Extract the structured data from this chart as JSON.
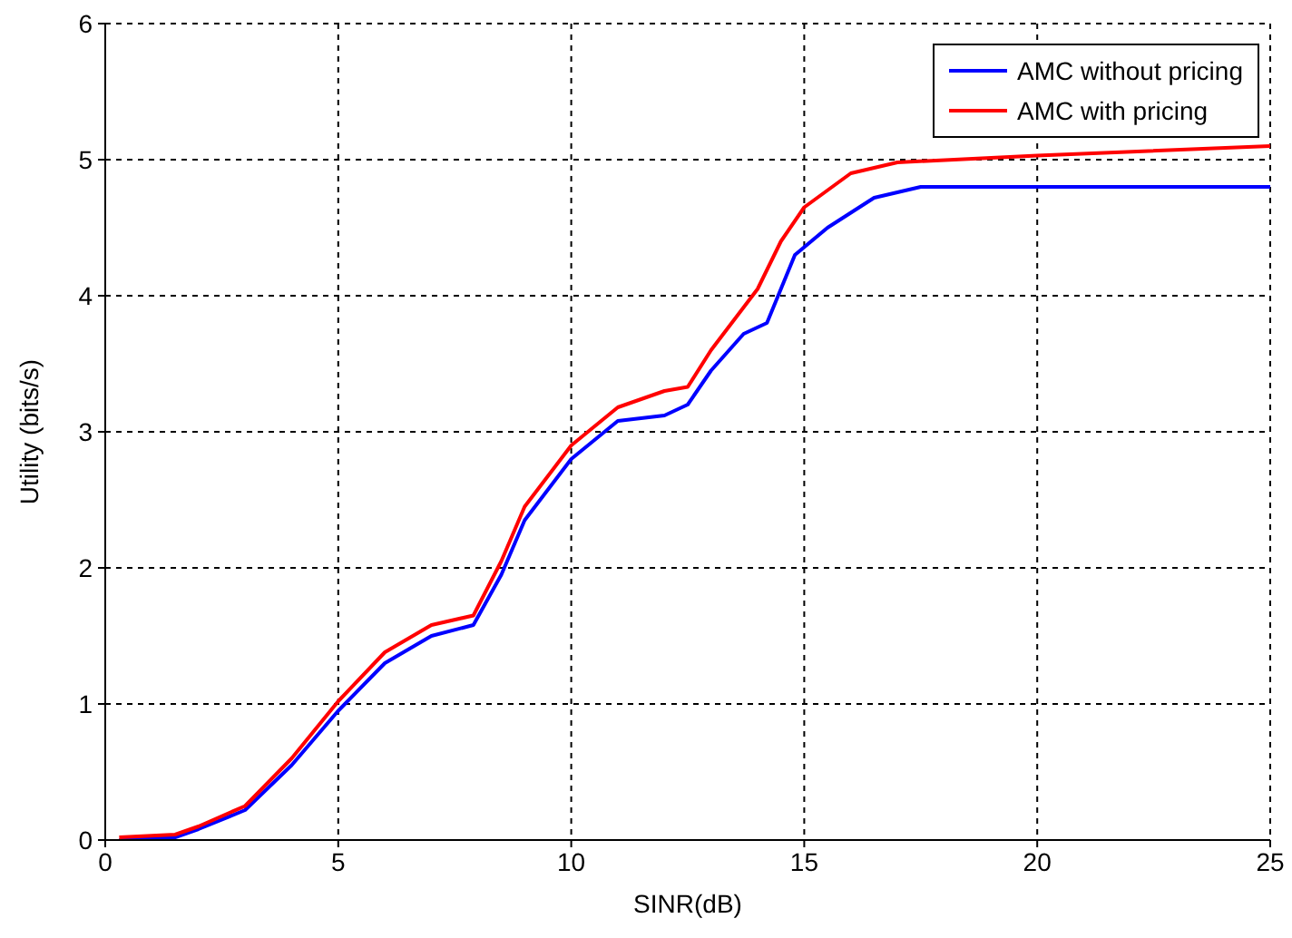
{
  "chart_data": {
    "type": "line",
    "xlabel": "SINR(dB)",
    "ylabel": "Utility (bits/s)",
    "xlim": [
      0,
      25
    ],
    "xticks": [
      0,
      5,
      10,
      15,
      20,
      25
    ],
    "ylim": [
      0,
      6
    ],
    "yticks": [
      0,
      1,
      2,
      3,
      4,
      5,
      6
    ],
    "grid": true,
    "legend": "top right",
    "marker": "none",
    "line_style": "solid",
    "series": [
      {
        "name": "AMC without pricing",
        "color": "#0000ff",
        "x": [
          0.3,
          1.5,
          2,
          3,
          4,
          5,
          6,
          7,
          7.9,
          8.5,
          9,
          10,
          11,
          12,
          12.5,
          13,
          13.7,
          14.2,
          14.8,
          15.5,
          16.5,
          17.5,
          25
        ],
        "values": [
          0,
          0.02,
          0.08,
          0.22,
          0.55,
          0.95,
          1.3,
          1.5,
          1.58,
          1.95,
          2.35,
          2.8,
          3.08,
          3.12,
          3.2,
          3.45,
          3.72,
          3.8,
          4.3,
          4.5,
          4.72,
          4.8,
          4.8
        ]
      },
      {
        "name": "AMC with pricing",
        "color": "#ff0000",
        "x": [
          0.3,
          1.5,
          2,
          3,
          4,
          5,
          6,
          7,
          7.9,
          8.5,
          9,
          10,
          11,
          12,
          12.5,
          13,
          14,
          14.5,
          15,
          16,
          17,
          20,
          25
        ],
        "values": [
          0.02,
          0.04,
          0.1,
          0.25,
          0.6,
          1.02,
          1.38,
          1.58,
          1.65,
          2.05,
          2.45,
          2.9,
          3.18,
          3.3,
          3.33,
          3.6,
          4.05,
          4.4,
          4.65,
          4.9,
          4.98,
          5.03,
          5.1
        ]
      }
    ]
  }
}
